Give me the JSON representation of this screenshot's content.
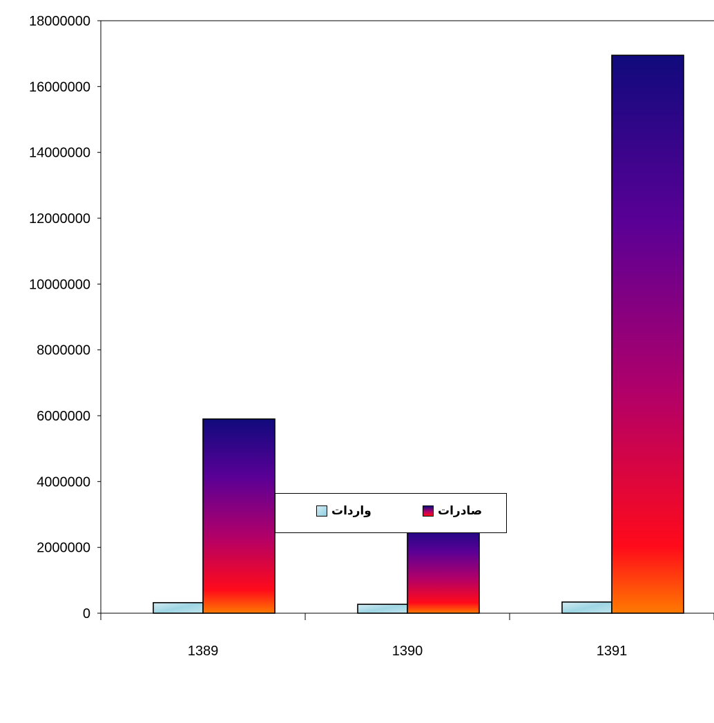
{
  "chart_data": {
    "type": "bar",
    "categories": [
      "1389",
      "1390",
      "1391"
    ],
    "series": [
      {
        "name": "واردات",
        "values": [
          320000,
          270000,
          340000
        ],
        "colors": [
          "#c6e6ef",
          "#8ecfe0"
        ]
      },
      {
        "name": "صادرات",
        "values": [
          5900000,
          2680000,
          16950000
        ],
        "colors": [
          "#ff7a00",
          "#ff0a1a",
          "#b0006a",
          "#5a0096",
          "#100a7c"
        ]
      }
    ],
    "y_ticks": [
      "0",
      "2000000",
      "4000000",
      "6000000",
      "8000000",
      "10000000",
      "12000000",
      "14000000",
      "16000000",
      "18000000"
    ],
    "ylim": [
      0,
      18000000
    ],
    "grid": false,
    "legend_position": "bottom",
    "title": "",
    "xlabel": "",
    "ylabel": ""
  }
}
